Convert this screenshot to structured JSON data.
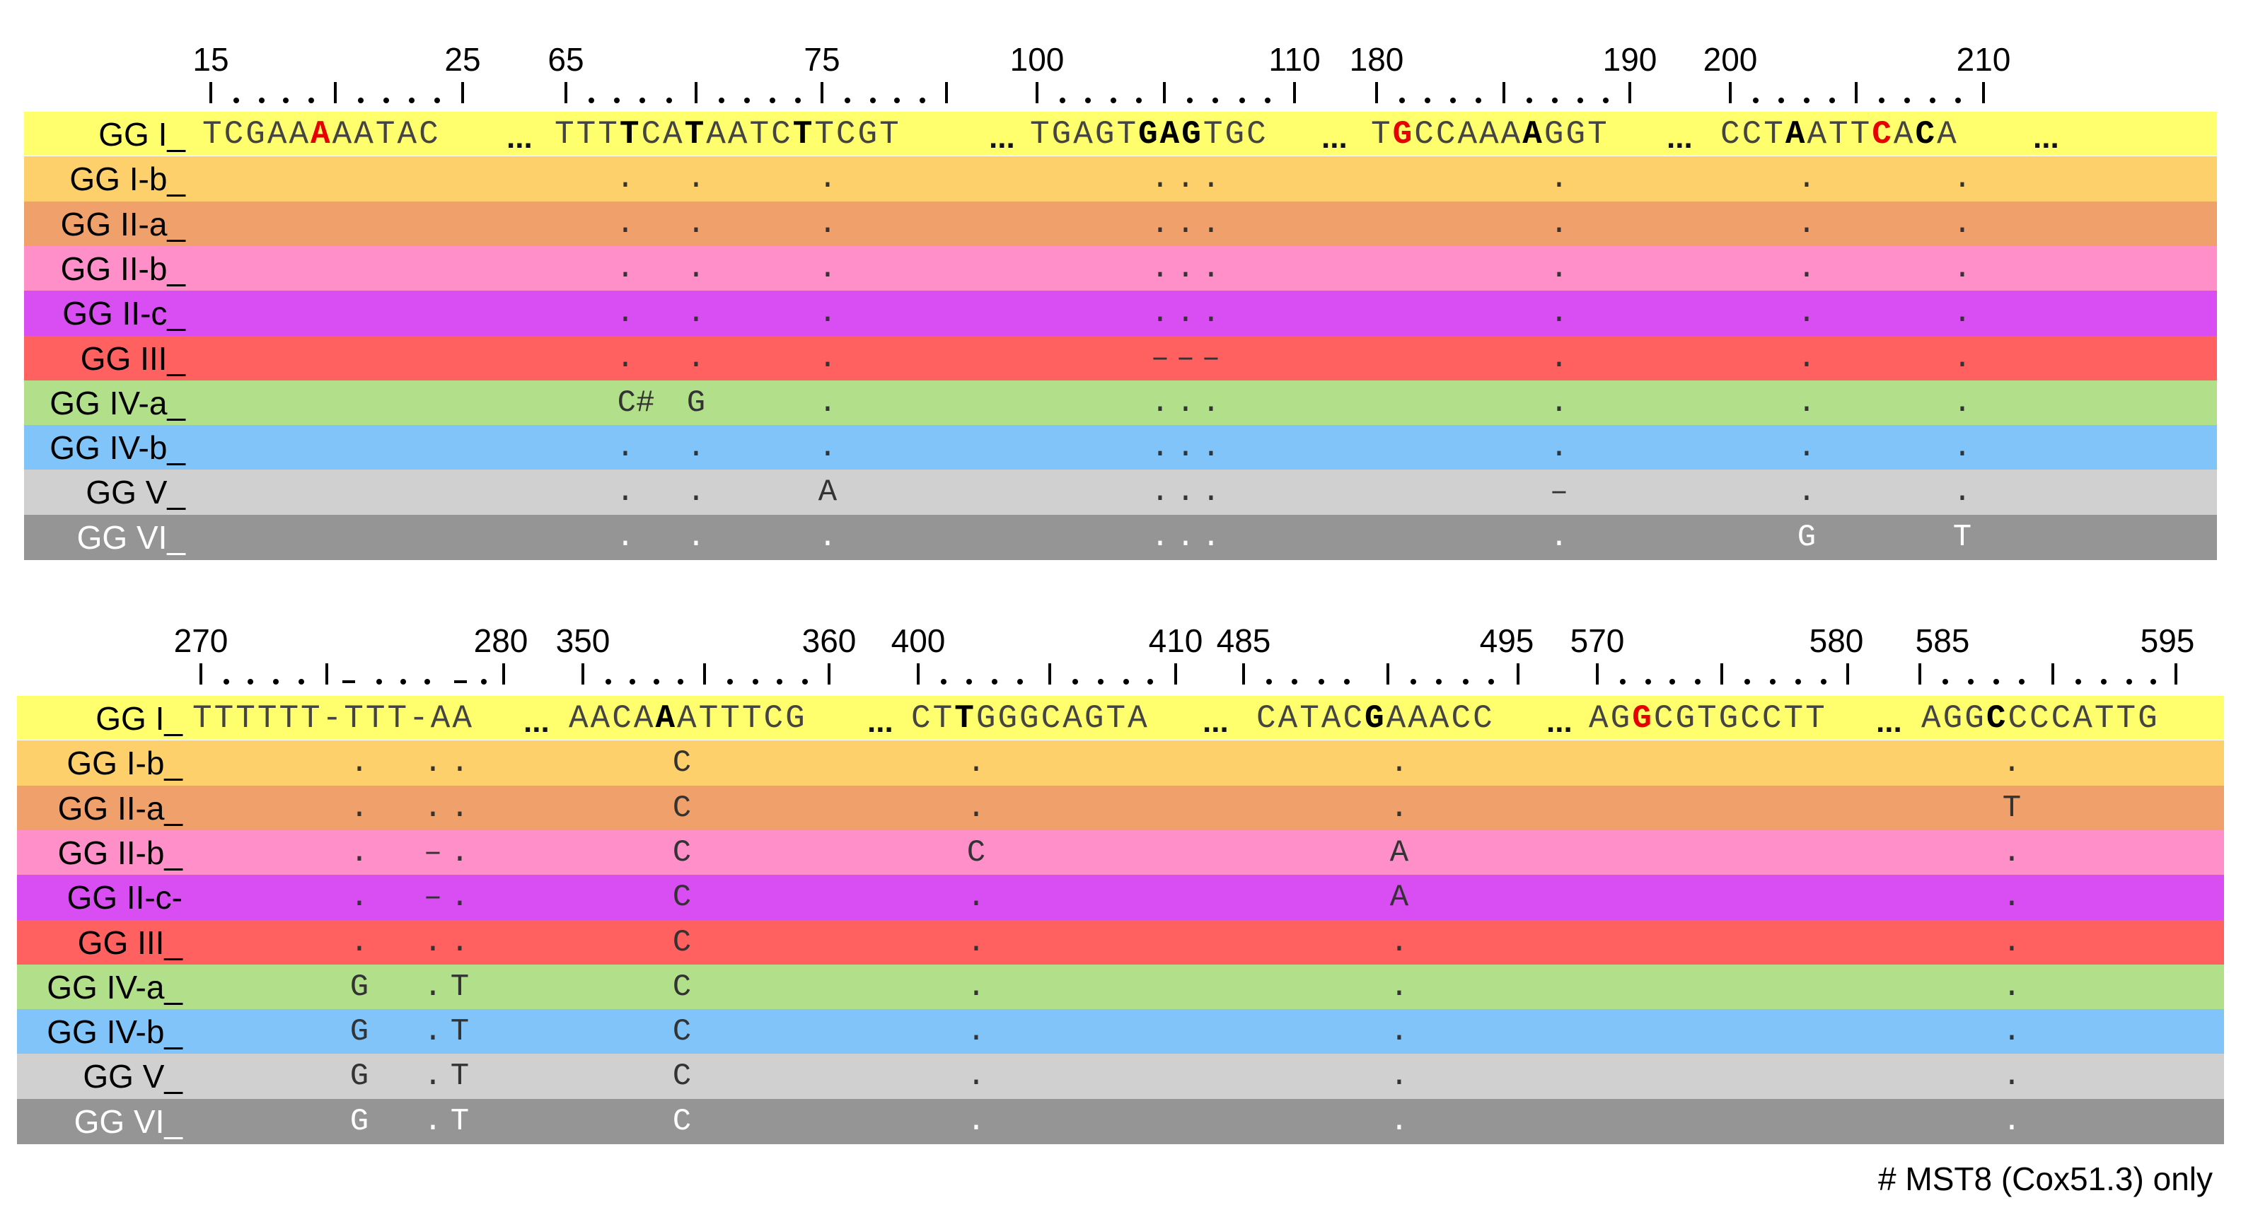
{
  "blocks": [
    {
      "ruler_labels": [
        "15",
        "25",
        "65",
        "75",
        "100",
        "110",
        "180",
        "190",
        "200",
        "210"
      ],
      "reference_label": "GG I_",
      "segments": [
        {
          "seq": [
            "T",
            "C",
            "G",
            "A",
            "A",
            "A",
            "A",
            "A",
            "T",
            "A",
            "C"
          ],
          "bold": [
            5
          ],
          "red": [
            5
          ]
        },
        {
          "seq": [
            "T",
            "T",
            "T",
            "T",
            "C",
            "A",
            "T",
            "A",
            "A",
            "T",
            "C",
            "T",
            "T",
            "C",
            "G",
            "T"
          ],
          "bold": [
            3,
            6,
            11
          ],
          "red": []
        },
        {
          "seq": [
            "T",
            "G",
            "A",
            "G",
            "T",
            "G",
            "A",
            "G",
            "T",
            "G",
            "C"
          ],
          "bold": [
            5,
            6,
            7
          ],
          "red": []
        },
        {
          "seq": [
            "T",
            "G",
            "C",
            "C",
            "A",
            "A",
            "A",
            "A",
            "G",
            "G",
            "T"
          ],
          "bold": [
            1,
            7
          ],
          "red": [
            1
          ]
        },
        {
          "seq": [
            "C",
            "C",
            "T",
            "A",
            "A",
            "T",
            "T",
            "C",
            "A",
            "C",
            "A"
          ],
          "bold": [
            3,
            7,
            9
          ],
          "red": [
            7
          ]
        }
      ],
      "ellipsis": "...",
      "rows": [
        {
          "label": "GG I-b_",
          "color": "#fdd06c",
          "text_color": "#333333",
          "cells": [
            ".",
            ".",
            ".",
            ".",
            ".",
            ".",
            ".",
            ".",
            "."
          ]
        },
        {
          "label": "GG II-a_",
          "color": "#f0a06a",
          "text_color": "#333333",
          "cells": [
            ".",
            ".",
            ".",
            ".",
            ".",
            ".",
            ".",
            ".",
            "."
          ]
        },
        {
          "label": "GG II-b_",
          "color": "#ff8fc8",
          "text_color": "#333333",
          "cells": [
            ".",
            ".",
            ".",
            ".",
            ".",
            ".",
            ".",
            ".",
            "."
          ]
        },
        {
          "label": "GG II-c_",
          "color": "#d94ef2",
          "text_color": "#333333",
          "cells": [
            ".",
            ".",
            ".",
            ".",
            ".",
            ".",
            ".",
            ".",
            "."
          ]
        },
        {
          "label": "GG III_",
          "color": "#ff6060",
          "text_color": "#333333",
          "cells": [
            ".",
            ".",
            ".",
            "–",
            "–",
            "–",
            ".",
            ".",
            "."
          ]
        },
        {
          "label": "GG IV-a_",
          "color": "#b2df8a",
          "text_color": "#333333",
          "cells": [
            "C#",
            "G",
            ".",
            ".",
            ".",
            ".",
            ".",
            ".",
            "."
          ]
        },
        {
          "label": "GG IV-b_",
          "color": "#80c4fa",
          "text_color": "#333333",
          "cells": [
            ".",
            ".",
            ".",
            ".",
            ".",
            ".",
            ".",
            ".",
            "."
          ]
        },
        {
          "label": "GG V_",
          "color": "#d0d0d0",
          "text_color": "#333333",
          "cells": [
            ".",
            ".",
            "A",
            ".",
            ".",
            ".",
            "–",
            ".",
            "."
          ]
        },
        {
          "label": "GG VI_",
          "color": "#959595",
          "text_color": "#ffffff",
          "cells": [
            ".",
            ".",
            ".",
            ".",
            ".",
            ".",
            ".",
            "G",
            "T"
          ]
        }
      ]
    },
    {
      "ruler_labels": [
        "270",
        "280",
        "350",
        "360",
        "400",
        "410",
        "485",
        "495",
        "570",
        "580",
        "585",
        "595"
      ],
      "reference_label": "GG I_",
      "segments": [
        {
          "seq": [
            "T",
            "T",
            "T",
            "T",
            "T",
            "T",
            "-",
            "T",
            "T",
            "T",
            "-",
            "A",
            "A"
          ],
          "bold": [],
          "red": []
        },
        {
          "seq": [
            "A",
            "A",
            "C",
            "A",
            "A",
            "A",
            "T",
            "T",
            "T",
            "C",
            "G"
          ],
          "bold": [
            4
          ],
          "red": []
        },
        {
          "seq": [
            "C",
            "T",
            "T",
            "G",
            "G",
            "G",
            "C",
            "A",
            "G",
            "T",
            "A"
          ],
          "bold": [
            2
          ],
          "red": []
        },
        {
          "seq": [
            "C",
            "A",
            "T",
            "A",
            "C",
            "G",
            "A",
            "A",
            "A",
            "C",
            "C"
          ],
          "bold": [
            5
          ],
          "red": []
        },
        {
          "seq": [
            "A",
            "G",
            "G",
            "C",
            "G",
            "T",
            "G",
            "C",
            "C",
            "T",
            "T"
          ],
          "bold": [
            2
          ],
          "red": [
            2
          ]
        },
        {
          "seq": [
            "A",
            "G",
            "G",
            "C",
            "C",
            "C",
            "C",
            "A",
            "T",
            "T",
            "G"
          ],
          "bold": [
            3
          ],
          "red": []
        }
      ],
      "ellipsis": "...",
      "rows": [
        {
          "label": "GG I-b_",
          "color": "#fdd06c",
          "text_color": "#333333",
          "cells": [
            ".",
            ".",
            ".",
            "C",
            ".",
            ".",
            "."
          ]
        },
        {
          "label": "GG II-a_",
          "color": "#f0a06a",
          "text_color": "#333333",
          "cells": [
            ".",
            ".",
            ".",
            "C",
            ".",
            ".",
            "T"
          ]
        },
        {
          "label": "GG II-b_",
          "color": "#ff8fc8",
          "text_color": "#333333",
          "cells": [
            ".",
            "–",
            ".",
            "C",
            "C",
            "A",
            "."
          ]
        },
        {
          "label": "GG II-c-",
          "color": "#d94ef2",
          "text_color": "#333333",
          "cells": [
            ".",
            "–",
            ".",
            "C",
            ".",
            "A",
            "."
          ]
        },
        {
          "label": "GG III_",
          "color": "#ff6060",
          "text_color": "#333333",
          "cells": [
            ".",
            ".",
            ".",
            "C",
            ".",
            ".",
            "."
          ]
        },
        {
          "label": "GG IV-a_",
          "color": "#b2df8a",
          "text_color": "#333333",
          "cells": [
            "G",
            ".",
            "T",
            "C",
            ".",
            ".",
            "."
          ]
        },
        {
          "label": "GG IV-b_",
          "color": "#80c4fa",
          "text_color": "#333333",
          "cells": [
            "G",
            ".",
            "T",
            "C",
            ".",
            ".",
            "."
          ]
        },
        {
          "label": "GG V_",
          "color": "#d0d0d0",
          "text_color": "#333333",
          "cells": [
            "G",
            ".",
            "T",
            "C",
            ".",
            ".",
            "."
          ]
        },
        {
          "label": "GG VI_",
          "color": "#959595",
          "text_color": "#ffffff",
          "cells": [
            "G",
            ".",
            "T",
            "C",
            ".",
            ".",
            "."
          ]
        }
      ]
    }
  ],
  "reference_color": "#ffff6e",
  "footnote": "# MST8  (Cox51.3) only"
}
